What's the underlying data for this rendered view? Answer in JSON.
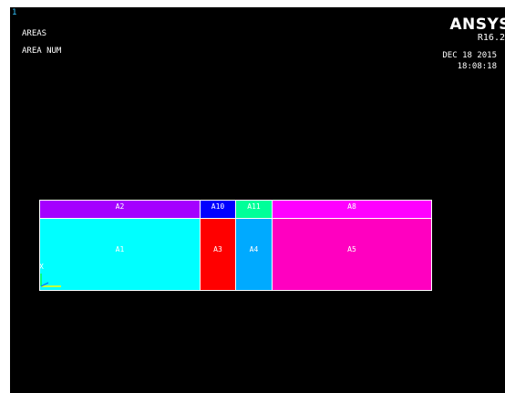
{
  "window": {
    "number": "1"
  },
  "plot": {
    "title": "AREAS",
    "subtitle": "AREA NUM"
  },
  "brand": {
    "name": "ANSYS",
    "version": "R16.2",
    "date": "DEC 18 2015",
    "time": "18:08:18"
  },
  "areas": [
    {
      "label": "A2",
      "color": "#a500ff"
    },
    {
      "label": "A10",
      "color": "#0000ff"
    },
    {
      "label": "A11",
      "color": "#00ff99"
    },
    {
      "label": "A8",
      "color": "#ff00ff"
    },
    {
      "label": "A1",
      "color": "#00ffff"
    },
    {
      "label": "A3",
      "color": "#ff0000"
    },
    {
      "label": "A4",
      "color": "#00aaff"
    },
    {
      "label": "A5",
      "color": "#ff00c0"
    }
  ],
  "triad": {
    "axis_label": "X",
    "colors": {
      "x": "#ffff00",
      "y": "#00ff00",
      "z": "#0066ff"
    }
  }
}
